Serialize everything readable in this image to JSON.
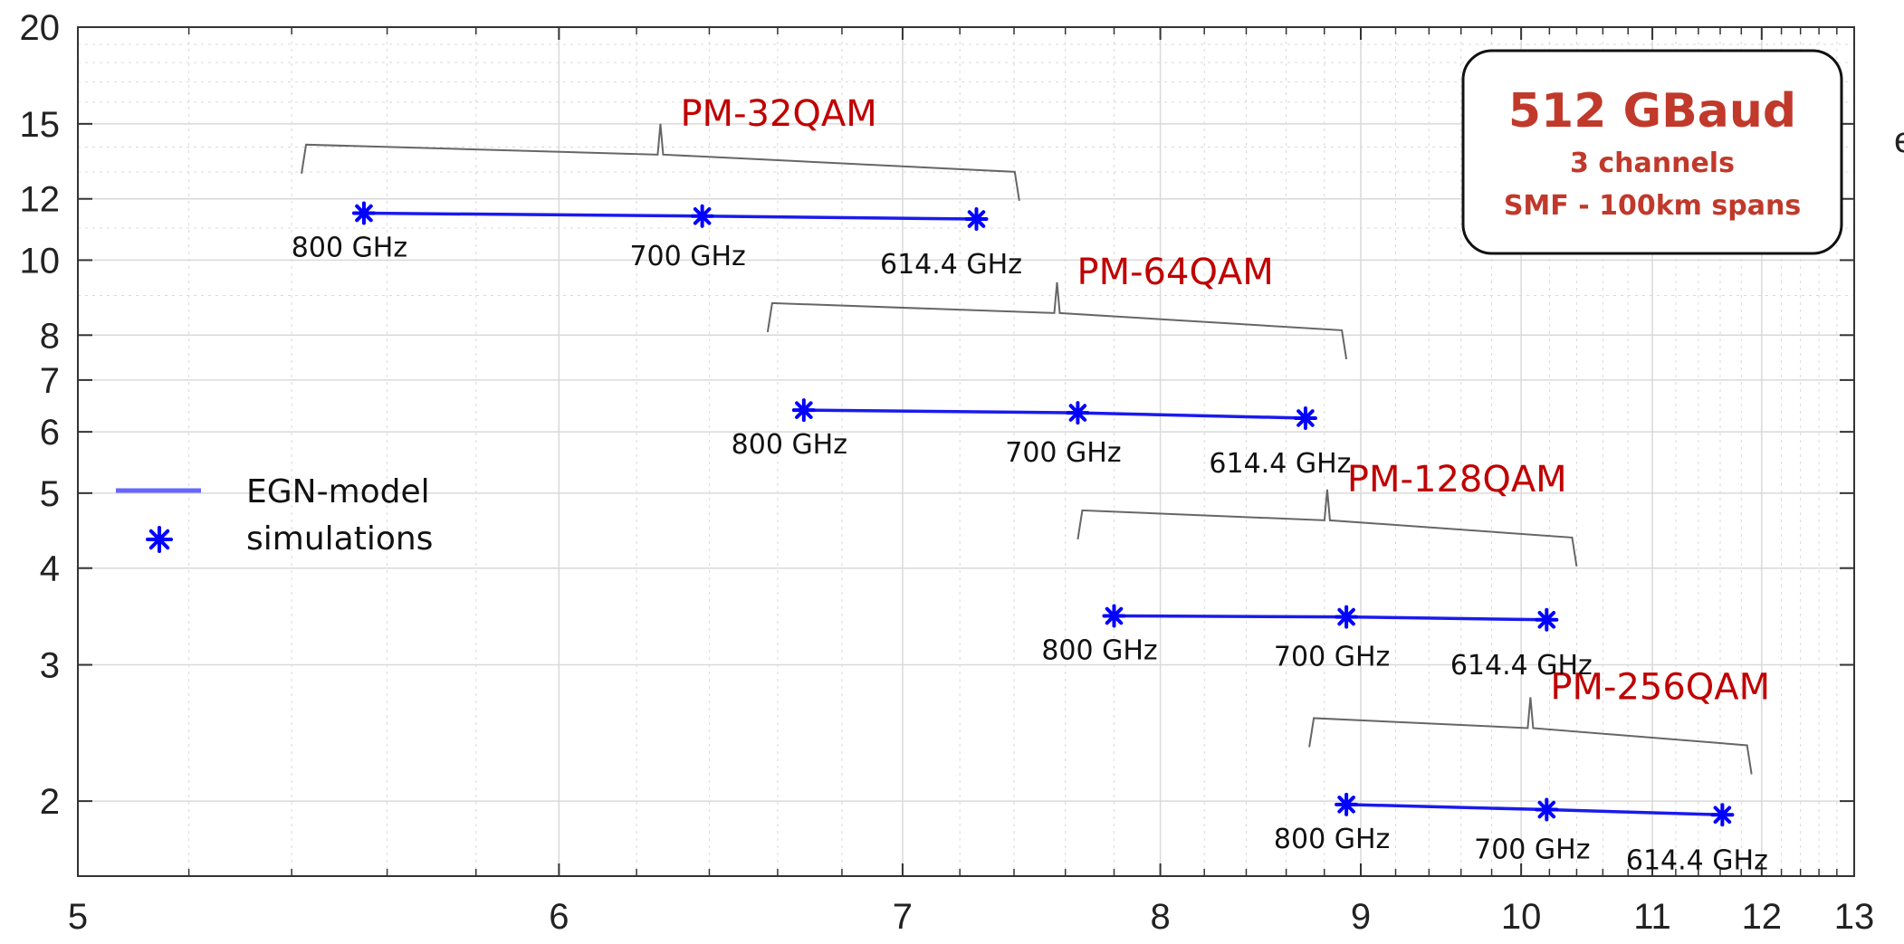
{
  "chart_data": {
    "type": "line",
    "x_axis": {
      "scale": "reciprocal",
      "range": [
        5,
        13
      ],
      "ticks": [
        5,
        6,
        7,
        8,
        9,
        10,
        11,
        12,
        13
      ]
    },
    "y_axis": {
      "scale": "log",
      "range": [
        1.6,
        20
      ],
      "ticks": [
        2,
        3,
        4,
        5,
        6,
        7,
        8,
        10,
        12,
        15,
        20
      ]
    },
    "grid": true,
    "series": [
      {
        "name": "PM-32QAM",
        "x": [
          5.55,
          6.38,
          7.26
        ],
        "y": [
          11.5,
          11.4,
          11.3
        ],
        "point_labels": [
          "800 GHz",
          "700 GHz",
          "614.4 GHz"
        ]
      },
      {
        "name": "PM-64QAM",
        "x": [
          6.68,
          7.65,
          8.7
        ],
        "y": [
          6.4,
          6.35,
          6.25
        ],
        "point_labels": [
          "800 GHz",
          "700 GHz",
          "614.4 GHz"
        ]
      },
      {
        "name": "PM-128QAM",
        "x": [
          7.8,
          8.92,
          10.18
        ],
        "y": [
          3.47,
          3.46,
          3.43
        ],
        "point_labels": [
          "800 GHz",
          "700 GHz",
          "614.4 GHz"
        ]
      },
      {
        "name": "PM-256QAM",
        "x": [
          8.92,
          10.18,
          11.62
        ],
        "y": [
          1.98,
          1.95,
          1.92
        ],
        "point_labels": [
          "800 GHz",
          "700 GHz",
          "614.4 GHz"
        ]
      }
    ],
    "brackets": [
      {
        "label": "PM-32QAM",
        "x_range": [
          5.42,
          7.42
        ],
        "y": 14.1
      },
      {
        "label": "PM-64QAM",
        "x_range": [
          6.57,
          8.92
        ],
        "y": 8.8
      },
      {
        "label": "PM-128QAM",
        "x_range": [
          7.65,
          10.4
        ],
        "y": 4.75
      },
      {
        "label": "PM-256QAM",
        "x_range": [
          8.72,
          11.9
        ],
        "y": 2.56
      }
    ],
    "legend": {
      "placement": "lower-left",
      "entries": [
        {
          "label": "EGN-model",
          "marker": "line",
          "color": "#6666ff"
        },
        {
          "label": "simulations",
          "marker": "asterisk",
          "color": "#0000ff"
        }
      ]
    },
    "annotation_box": {
      "title": "512 GBaud",
      "lines": [
        "3 channels",
        "SMF - 100km spans"
      ]
    },
    "edge_fragment": "e"
  },
  "colors": {
    "line": "#1a1aee",
    "marker": "#0000ff",
    "modulation_label": "#c00000",
    "info_text": "#c0392b",
    "bracket": "#666666",
    "grid": "#d9d9d9"
  }
}
